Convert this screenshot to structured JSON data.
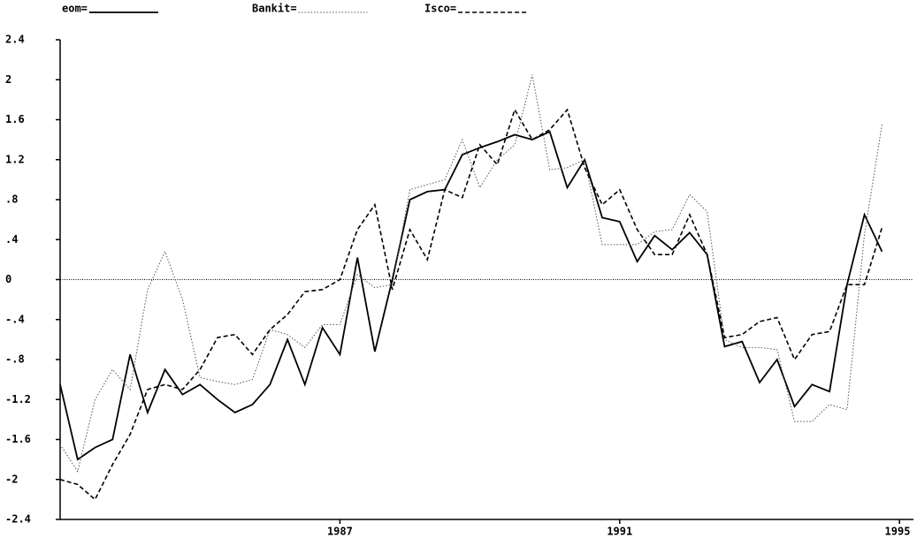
{
  "chart_data": {
    "type": "line",
    "x": [
      1983,
      1983.25,
      1983.5,
      1983.75,
      1984,
      1984.25,
      1984.5,
      1984.75,
      1985,
      1985.25,
      1985.5,
      1985.75,
      1986,
      1986.25,
      1986.5,
      1986.75,
      1987,
      1987.25,
      1987.5,
      1987.75,
      1988,
      1988.25,
      1988.5,
      1988.75,
      1989,
      1989.25,
      1989.5,
      1989.75,
      1990,
      1990.25,
      1990.5,
      1990.75,
      1991,
      1991.25,
      1991.5,
      1991.75,
      1992,
      1992.25,
      1992.5,
      1992.75,
      1993,
      1993.25,
      1993.5,
      1993.75,
      1994,
      1994.25,
      1994.5,
      1994.75
    ],
    "series": [
      {
        "name": "eom=",
        "color": "#000000",
        "dash": "solid",
        "values": [
          -1.05,
          -1.8,
          -1.68,
          -1.6,
          -0.75,
          -1.33,
          -0.9,
          -1.15,
          -1.05,
          -1.2,
          -1.33,
          -1.25,
          -1.05,
          -0.6,
          -1.05,
          -0.48,
          -0.75,
          0.22,
          -0.72,
          0.0,
          0.8,
          0.88,
          0.9,
          1.25,
          1.32,
          1.38,
          1.45,
          1.4,
          1.48,
          0.92,
          1.2,
          0.62,
          0.58,
          0.18,
          0.44,
          0.3,
          0.47,
          0.25,
          -0.67,
          -0.62,
          -1.03,
          -0.8,
          -1.27,
          -1.05,
          -1.12,
          -0.05,
          0.65,
          0.28
        ]
      },
      {
        "name": "Bankit=",
        "color": "#555555",
        "dash": "dotted",
        "values": [
          -1.65,
          -1.92,
          -1.2,
          -0.9,
          -1.1,
          -0.1,
          0.28,
          -0.2,
          -0.98,
          -1.02,
          -1.05,
          -1.0,
          -0.5,
          -0.55,
          -0.68,
          -0.45,
          -0.45,
          0.05,
          -0.08,
          -0.05,
          0.9,
          0.95,
          1.0,
          1.4,
          0.92,
          1.2,
          1.35,
          2.05,
          1.1,
          1.12,
          1.2,
          0.35,
          0.35,
          0.35,
          0.48,
          0.5,
          0.85,
          0.68,
          -0.6,
          -0.68,
          -0.68,
          -0.7,
          -1.42,
          -1.42,
          -1.25,
          -1.3,
          0.45,
          1.55
        ]
      },
      {
        "name": "Isco=",
        "color": "#000000",
        "dash": "dashed",
        "values": [
          -2.0,
          -2.05,
          -2.2,
          -1.85,
          -1.55,
          -1.1,
          -1.05,
          -1.1,
          -0.9,
          -0.58,
          -0.55,
          -0.75,
          -0.5,
          -0.35,
          -0.12,
          -0.1,
          0.0,
          0.5,
          0.75,
          -0.1,
          0.5,
          0.2,
          0.9,
          0.82,
          1.35,
          1.15,
          1.7,
          1.4,
          1.5,
          1.7,
          1.12,
          0.75,
          0.9,
          0.5,
          0.25,
          0.25,
          0.65,
          0.25,
          -0.58,
          -0.55,
          -0.42,
          -0.38,
          -0.8,
          -0.55,
          -0.52,
          -0.05,
          -0.05,
          0.52
        ]
      }
    ],
    "xlim": [
      1983,
      1995.2
    ],
    "xticks": [
      1987,
      1991,
      1995
    ],
    "ylim": [
      -2.4,
      2.4
    ],
    "yticks": [
      -2.4,
      -2,
      -1.6,
      -1.2,
      {
        "value": -0.8,
        "label": "-.8"
      },
      {
        "value": -0.4,
        "label": "-.4"
      },
      0,
      {
        "value": 0.4,
        "label": ".4"
      },
      {
        "value": 0.8,
        "label": ".8"
      },
      1.2,
      1.6,
      2,
      2.4
    ],
    "zero_line": true
  }
}
